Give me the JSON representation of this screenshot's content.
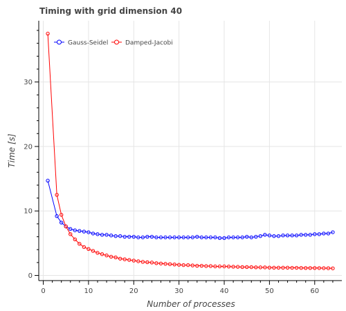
{
  "chart_data": {
    "type": "line",
    "title": "Timing with grid dimension 40",
    "xlabel": "Number of processes",
    "ylabel": "Time [s]",
    "xlim": [
      -1,
      66
    ],
    "ylim": [
      -0.8,
      39.5
    ],
    "x_ticks": [
      0,
      10,
      20,
      30,
      40,
      50,
      60
    ],
    "y_ticks": [
      0,
      10,
      20,
      30
    ],
    "grid": true,
    "legend_position": "top-left",
    "series": [
      {
        "name": "Gauss-Seidel",
        "color": "#0000ff",
        "x": [
          1,
          3,
          4,
          5,
          6,
          7,
          8,
          9,
          10,
          11,
          12,
          13,
          14,
          15,
          16,
          17,
          18,
          19,
          20,
          21,
          22,
          23,
          24,
          25,
          26,
          27,
          28,
          29,
          30,
          31,
          32,
          33,
          34,
          35,
          36,
          37,
          38,
          39,
          40,
          41,
          42,
          43,
          44,
          45,
          46,
          47,
          48,
          49,
          50,
          51,
          52,
          53,
          54,
          55,
          56,
          57,
          58,
          59,
          60,
          61,
          62,
          63,
          64
        ],
        "values": [
          14.7,
          9.2,
          8.2,
          7.6,
          7.2,
          7.0,
          6.9,
          6.8,
          6.7,
          6.5,
          6.4,
          6.3,
          6.3,
          6.2,
          6.1,
          6.1,
          6.0,
          6.0,
          6.0,
          5.9,
          5.9,
          6.0,
          6.0,
          5.9,
          5.9,
          5.9,
          5.9,
          5.9,
          5.9,
          5.9,
          5.9,
          5.9,
          6.0,
          5.9,
          5.9,
          5.9,
          5.9,
          5.8,
          5.8,
          5.9,
          5.9,
          5.9,
          5.9,
          6.0,
          5.9,
          6.0,
          6.1,
          6.3,
          6.2,
          6.1,
          6.1,
          6.2,
          6.2,
          6.2,
          6.2,
          6.3,
          6.3,
          6.3,
          6.4,
          6.4,
          6.5,
          6.5,
          6.7
        ]
      },
      {
        "name": "Damped-Jacobi",
        "color": "#ff0000",
        "x": [
          1,
          3,
          4,
          5,
          6,
          7,
          8,
          9,
          10,
          11,
          12,
          13,
          14,
          15,
          16,
          17,
          18,
          19,
          20,
          21,
          22,
          23,
          24,
          25,
          26,
          27,
          28,
          29,
          30,
          31,
          32,
          33,
          34,
          35,
          36,
          37,
          38,
          39,
          40,
          41,
          42,
          43,
          44,
          45,
          46,
          47,
          48,
          49,
          50,
          51,
          52,
          53,
          54,
          55,
          56,
          57,
          58,
          59,
          60,
          61,
          62,
          63,
          64
        ],
        "values": [
          37.5,
          12.5,
          9.4,
          7.6,
          6.4,
          5.6,
          4.9,
          4.4,
          4.1,
          3.8,
          3.5,
          3.3,
          3.1,
          2.9,
          2.8,
          2.6,
          2.5,
          2.4,
          2.3,
          2.2,
          2.1,
          2.05,
          2.0,
          1.9,
          1.85,
          1.8,
          1.75,
          1.7,
          1.65,
          1.6,
          1.6,
          1.55,
          1.5,
          1.5,
          1.45,
          1.45,
          1.4,
          1.4,
          1.4,
          1.38,
          1.35,
          1.33,
          1.3,
          1.3,
          1.28,
          1.26,
          1.25,
          1.24,
          1.22,
          1.2,
          1.2,
          1.2,
          1.2,
          1.18,
          1.18,
          1.16,
          1.15,
          1.15,
          1.15,
          1.14,
          1.13,
          1.12,
          1.1
        ]
      }
    ]
  }
}
